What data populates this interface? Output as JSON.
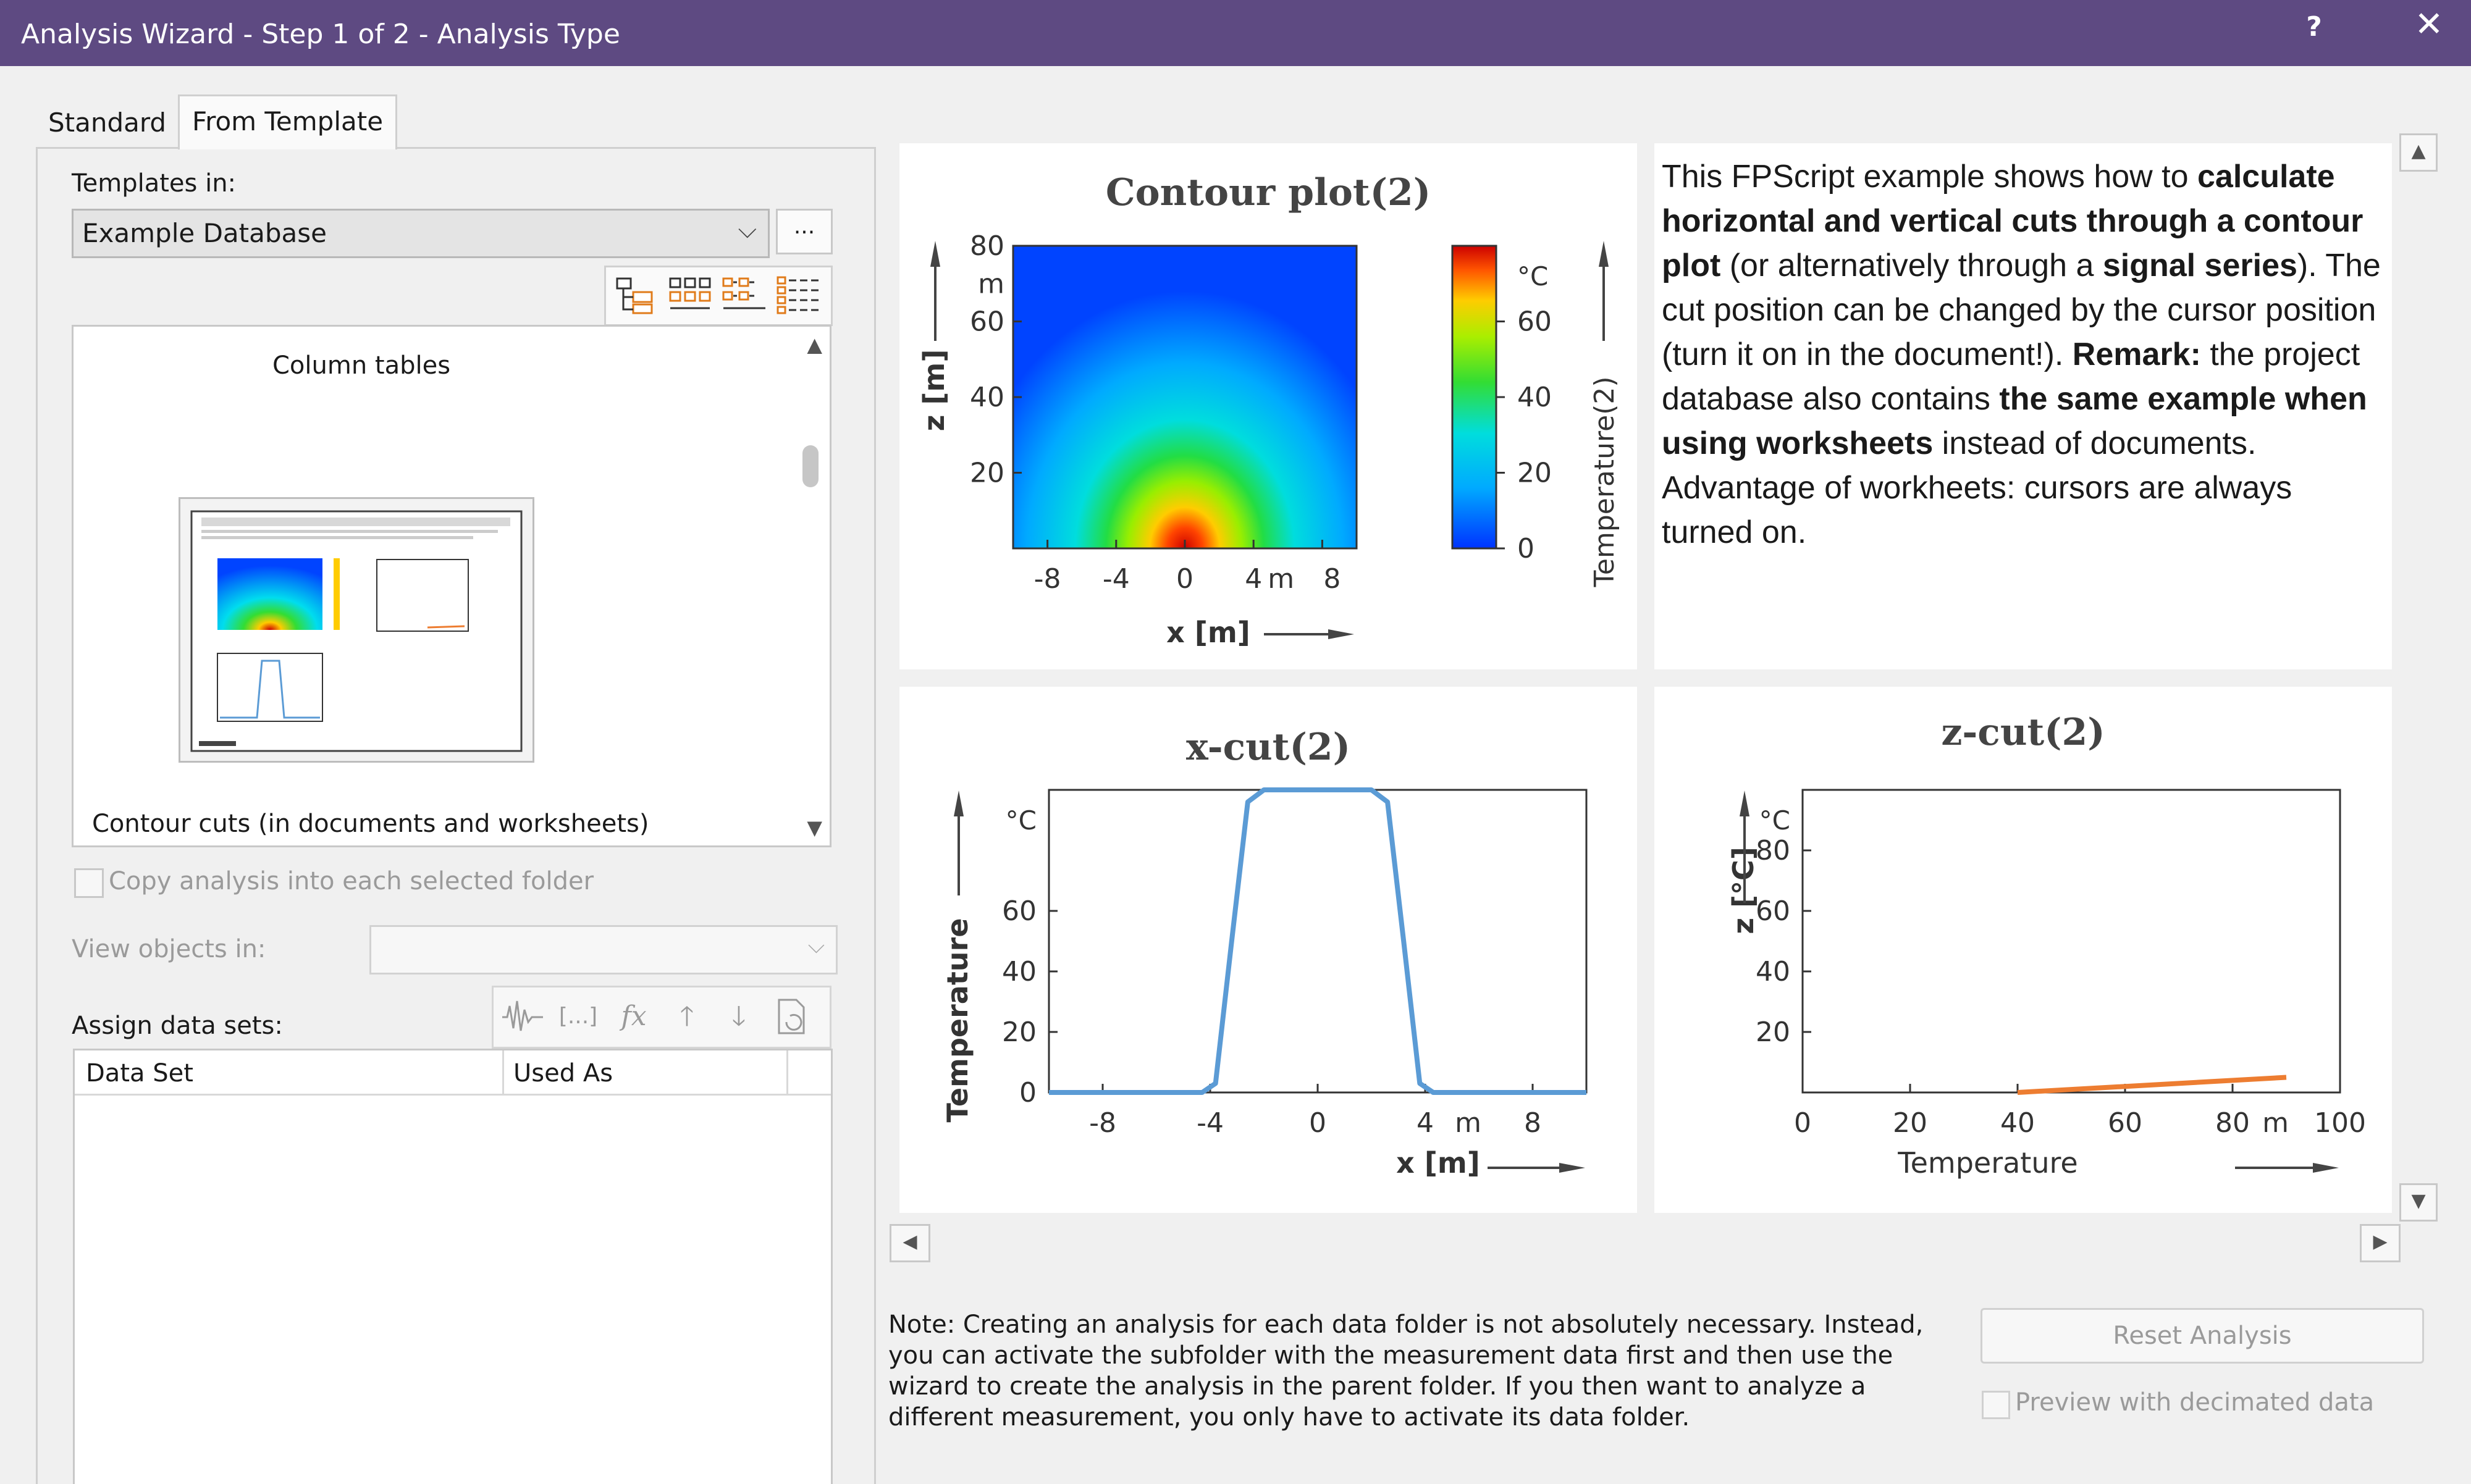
{
  "window": {
    "title": "Analysis Wizard - Step 1 of 2 - Analysis Type",
    "help": "?",
    "close": "✕"
  },
  "tabs": [
    {
      "label": "Standard",
      "active": false
    },
    {
      "label": "From Template",
      "active": true
    }
  ],
  "templates": {
    "label": "Templates in:",
    "selected": "Example Database",
    "more_button": "...",
    "category": "Column tables",
    "item": "Contour cuts (in documents and worksheets)"
  },
  "copy_option": {
    "label": "Copy analysis into each selected folder",
    "checked": false
  },
  "view_objects": {
    "label": "View objects in:",
    "value": ""
  },
  "assign": {
    "label": "Assign data sets:",
    "columns": [
      "Data Set",
      "Used As"
    ],
    "buttons": {
      "fx": "fx",
      "brackets": "[...]"
    }
  },
  "preview": {
    "description_html": "This FPScript example shows how to <b>calculate horizontal and vertical cuts through a contour plot</b> (or alternatively through a <b>signal series</b>). The cut position can be changed by the cursor position (turn it on in the document!). <b>Remark:</b> the project database also contains <b>the same example when using worksheets</b> instead of documents. Advantage of workheets: cursors are always turned on."
  },
  "chart_data": [
    {
      "type": "heatmap",
      "title": "Contour plot(2)",
      "xlabel": "x [m]",
      "ylabel": "z [m]",
      "x_ticks": [
        "-8",
        "-4",
        "0",
        "4",
        "8"
      ],
      "x_unit": "m",
      "y_ticks": [
        "20",
        "40",
        "60",
        "80"
      ],
      "y_unit": "m",
      "xlim": [
        -10,
        10
      ],
      "ylim": [
        0,
        80
      ],
      "colorbar": {
        "label": "Temperature(2)",
        "unit": "°C",
        "ticks": [
          "0",
          "20",
          "40",
          "60"
        ],
        "range": [
          0,
          80
        ]
      }
    },
    {
      "type": "line",
      "title": "x-cut(2)",
      "xlabel": "x [m]",
      "ylabel": "Temperature",
      "x_ticks": [
        "-8",
        "-4",
        "0",
        "4",
        "8"
      ],
      "x_unit": "m",
      "y_ticks": [
        "0",
        "20",
        "40",
        "60"
      ],
      "y_unit": "°C",
      "xlim": [
        -10,
        10
      ],
      "ylim": [
        0,
        100
      ],
      "color": "#5b9bd5",
      "series": [
        {
          "x": [
            -10,
            -4.3,
            -3.8,
            -3.2,
            -2.6,
            -2.0,
            2.0,
            2.6,
            3.2,
            3.8,
            4.3,
            10
          ],
          "y": [
            0,
            0,
            3,
            50,
            96,
            100,
            100,
            96,
            50,
            3,
            0,
            0
          ]
        }
      ]
    },
    {
      "type": "line",
      "title": "z-cut(2)",
      "xlabel": "Temperature",
      "ylabel": "z [°C]",
      "x_ticks": [
        "0",
        "20",
        "40",
        "60",
        "80",
        "100"
      ],
      "x_unit": "m",
      "y_ticks": [
        "20",
        "40",
        "60",
        "80"
      ],
      "y_unit": "°C",
      "xlim": [
        0,
        100
      ],
      "ylim": [
        0,
        100
      ],
      "color": "#ed7d31",
      "series": [
        {
          "x": [
            40,
            90
          ],
          "y": [
            0,
            5
          ]
        }
      ]
    }
  ],
  "note": "Note: Creating an analysis for each data folder is not absolutely necessary. Instead, you can activate the subfolder with the measurement data first and then use the wizard to create the analysis in the parent folder. If you then want to analyze a different measurement, you only have to activate its data folder.",
  "reset_button": "Reset Analysis",
  "preview_option": {
    "label": "Preview with decimated data",
    "checked": false
  },
  "colors": {
    "titlebar": "#5e4a82",
    "xcut_line": "#5b9bd5",
    "zcut_line": "#ed7d31"
  }
}
